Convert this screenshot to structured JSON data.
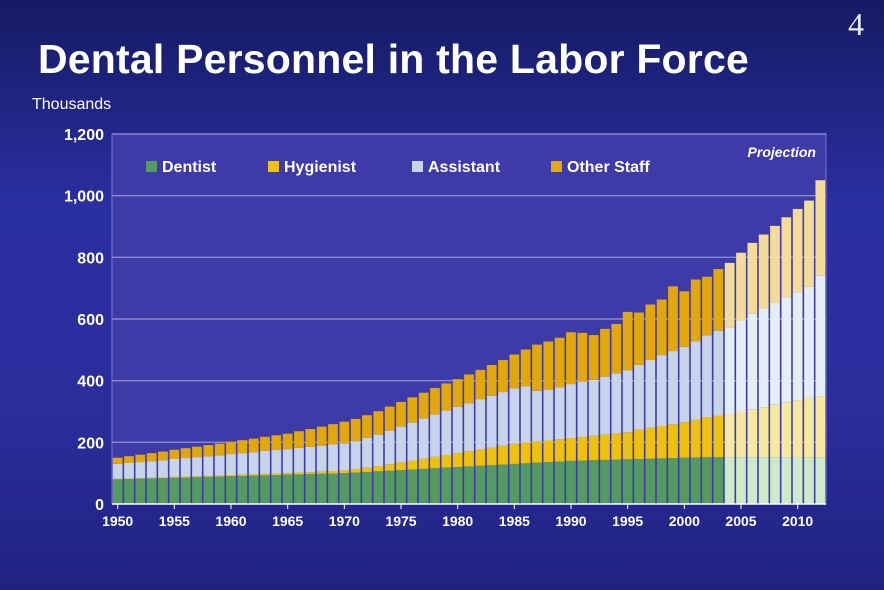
{
  "slide": {
    "number": "4",
    "title": "Dental Personnel in the Labor Force",
    "units": "Thousands"
  },
  "colors": {
    "dentist": "#559a62",
    "hygienist": "#f0c10c",
    "assistant": "#c7d4ec",
    "other": "#e2a80b",
    "dentist_proj": "#cdeacb",
    "hygienist_proj": "#f7e8a0",
    "assistant_proj": "#e3eef7",
    "other_proj": "#f3dc9a",
    "plot_bg": "#3e3aa8",
    "gridline": "#8a88d0",
    "axis_text": "#ffffff"
  },
  "chart_data": {
    "type": "bar",
    "stacked": true,
    "title": "Dental Personnel in the Labor Force",
    "ylabel": "Thousands",
    "xlabel": "",
    "ylim": [
      0,
      1200
    ],
    "yticks": [
      0,
      200,
      400,
      600,
      800,
      1000,
      1200
    ],
    "ytick_labels": [
      "0",
      "200",
      "400",
      "600",
      "800",
      "1,000",
      "1,200"
    ],
    "xtick_labels": [
      "1950",
      "1955",
      "1960",
      "1965",
      "1970",
      "1975",
      "1980",
      "1985",
      "1990",
      "1995",
      "2000",
      "2005",
      "2010"
    ],
    "grid": true,
    "legend_position": "top-left",
    "annotation": "Projection",
    "projection_start_year": 2004,
    "x": [
      1950,
      1951,
      1952,
      1953,
      1954,
      1955,
      1956,
      1957,
      1958,
      1959,
      1960,
      1961,
      1962,
      1963,
      1964,
      1965,
      1966,
      1967,
      1968,
      1969,
      1970,
      1971,
      1972,
      1973,
      1974,
      1975,
      1976,
      1977,
      1978,
      1979,
      1980,
      1981,
      1982,
      1983,
      1984,
      1985,
      1986,
      1987,
      1988,
      1989,
      1990,
      1991,
      1992,
      1993,
      1994,
      1995,
      1996,
      1997,
      1998,
      1999,
      2000,
      2001,
      2002,
      2003,
      2004,
      2005,
      2006,
      2007,
      2008,
      2009,
      2010,
      2011,
      2012
    ],
    "series": [
      {
        "name": "Dentist",
        "values": [
          80,
          81,
          82,
          83,
          84,
          85,
          86,
          87,
          88,
          89,
          90,
          91,
          92,
          93,
          94,
          95,
          96,
          97,
          98,
          99,
          100,
          102,
          104,
          106,
          108,
          110,
          112,
          114,
          116,
          118,
          120,
          122,
          124,
          126,
          128,
          130,
          132,
          134,
          136,
          138,
          140,
          141,
          142,
          143,
          144,
          145,
          146,
          147,
          148,
          149,
          150,
          151,
          152,
          152,
          152,
          152,
          152,
          152,
          152,
          152,
          151,
          150,
          150
        ]
      },
      {
        "name": "Hygienist",
        "values": [
          2,
          2,
          2,
          2,
          2,
          3,
          3,
          3,
          3,
          3,
          4,
          4,
          4,
          5,
          5,
          5,
          6,
          6,
          7,
          8,
          9,
          11,
          14,
          17,
          21,
          25,
          29,
          33,
          37,
          41,
          45,
          49,
          53,
          57,
          61,
          65,
          67,
          69,
          70,
          72,
          74,
          76,
          79,
          82,
          85,
          88,
          95,
          100,
          105,
          110,
          115,
          122,
          130,
          135,
          140,
          148,
          155,
          162,
          170,
          178,
          186,
          194,
          200
        ]
      },
      {
        "name": "Assistant",
        "values": [
          48,
          50,
          52,
          54,
          56,
          58,
          60,
          62,
          64,
          66,
          68,
          70,
          72,
          74,
          76,
          78,
          80,
          82,
          84,
          86,
          88,
          91,
          96,
          102,
          109,
          116,
          123,
          130,
          137,
          144,
          150,
          156,
          162,
          168,
          174,
          180,
          182,
          164,
          165,
          168,
          175,
          180,
          182,
          188,
          195,
          200,
          210,
          220,
          230,
          237,
          245,
          255,
          265,
          275,
          280,
          295,
          310,
          320,
          330,
          340,
          350,
          360,
          390
        ]
      },
      {
        "name": "Other Staff",
        "values": [
          20,
          22,
          24,
          26,
          28,
          30,
          32,
          34,
          36,
          38,
          40,
          42,
          44,
          46,
          48,
          50,
          54,
          58,
          62,
          66,
          70,
          72,
          74,
          76,
          78,
          80,
          82,
          84,
          86,
          88,
          90,
          93,
          96,
          100,
          104,
          110,
          120,
          150,
          156,
          161,
          168,
          158,
          145,
          155,
          160,
          190,
          170,
          180,
          180,
          210,
          180,
          200,
          190,
          200,
          210,
          220,
          230,
          240,
          250,
          260,
          270,
          280,
          310
        ]
      }
    ]
  }
}
